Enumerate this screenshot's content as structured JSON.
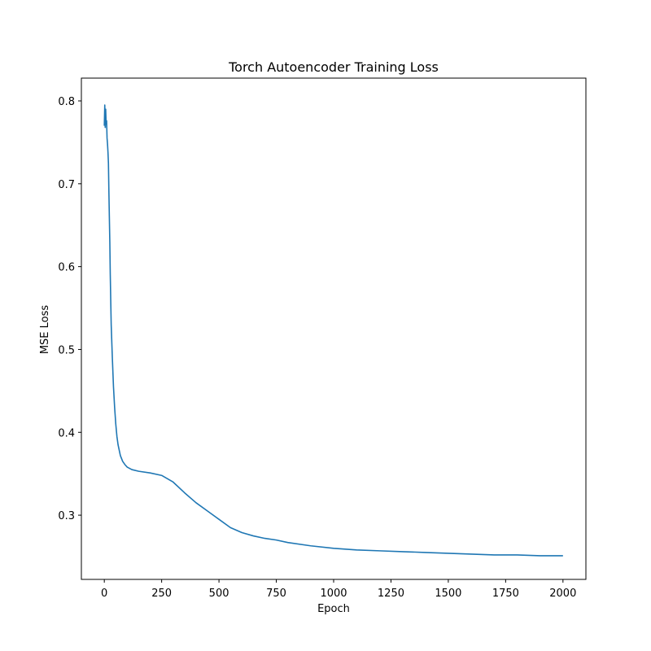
{
  "chart_data": {
    "type": "line",
    "title": "Torch Autoencoder Training Loss",
    "xlabel": "Epoch",
    "ylabel": "MSE Loss",
    "xlim": [
      -100,
      2100
    ],
    "ylim": [
      0.2225,
      0.8275
    ],
    "xticks": [
      0,
      250,
      500,
      750,
      1000,
      1250,
      1500,
      1750,
      2000
    ],
    "yticks": [
      0.3,
      0.4,
      0.5,
      0.6,
      0.7,
      0.8
    ],
    "grid": false,
    "series": [
      {
        "color": "#1f77b4",
        "x": [
          0,
          2,
          4,
          6,
          8,
          10,
          12,
          14,
          16,
          18,
          20,
          22,
          24,
          26,
          28,
          30,
          35,
          40,
          45,
          50,
          55,
          60,
          70,
          80,
          90,
          100,
          120,
          150,
          200,
          250,
          300,
          350,
          400,
          450,
          500,
          550,
          600,
          650,
          700,
          750,
          800,
          900,
          1000,
          1100,
          1200,
          1300,
          1400,
          1500,
          1600,
          1700,
          1800,
          1900,
          2000
        ],
        "y": [
          0.77,
          0.795,
          0.768,
          0.79,
          0.772,
          0.776,
          0.755,
          0.748,
          0.738,
          0.725,
          0.69,
          0.66,
          0.63,
          0.59,
          0.56,
          0.53,
          0.49,
          0.455,
          0.43,
          0.41,
          0.395,
          0.385,
          0.372,
          0.365,
          0.361,
          0.358,
          0.355,
          0.353,
          0.351,
          0.348,
          0.34,
          0.327,
          0.315,
          0.305,
          0.295,
          0.285,
          0.279,
          0.275,
          0.272,
          0.27,
          0.267,
          0.263,
          0.26,
          0.258,
          0.257,
          0.256,
          0.255,
          0.254,
          0.253,
          0.252,
          0.252,
          0.251,
          0.251
        ]
      }
    ]
  }
}
